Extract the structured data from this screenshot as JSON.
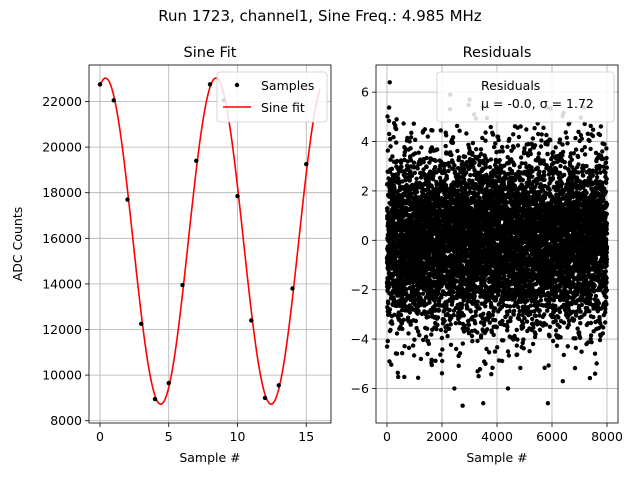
{
  "figure": {
    "suptitle": "Run 1723, channel1, Sine Freq.: 4.985 MHz"
  },
  "chart_data": [
    {
      "type": "scatter",
      "title": "Sine Fit",
      "xlabel": "Sample #",
      "ylabel": "ADC Counts",
      "xlim": [
        -0.8,
        16.8
      ],
      "ylim": [
        7900,
        23600
      ],
      "xticks": [
        0,
        5,
        10,
        15
      ],
      "yticks": [
        8000,
        10000,
        12000,
        14000,
        16000,
        18000,
        20000,
        22000
      ],
      "grid": true,
      "legend": {
        "position": "top-right",
        "entries": [
          "Samples",
          "Sine fit"
        ]
      },
      "series": [
        {
          "name": "Samples",
          "kind": "scatter",
          "color": "#000000",
          "x": [
            0,
            1,
            2,
            3,
            4,
            5,
            6,
            7,
            8,
            9,
            10,
            11,
            12,
            13,
            14,
            15
          ],
          "y": [
            22750,
            22050,
            17700,
            12250,
            8950,
            9650,
            13950,
            19400,
            22750,
            22050,
            17850,
            12400,
            9000,
            9550,
            13800,
            19250
          ]
        },
        {
          "name": "Sine fit",
          "kind": "line",
          "color": "#ff0000",
          "function": "sine",
          "mean": 15875,
          "amplitude": 7150,
          "period_samples": 8.03,
          "peak_at_sample": 0.4,
          "x_range": [
            0,
            16
          ]
        }
      ]
    },
    {
      "type": "scatter",
      "title": "Residuals",
      "xlabel": "Sample #",
      "ylabel": "",
      "xlim": [
        -400,
        8400
      ],
      "ylim": [
        -7.4,
        7.1
      ],
      "xticks": [
        0,
        2000,
        4000,
        6000,
        8000
      ],
      "yticks": [
        -6,
        -4,
        -2,
        0,
        2,
        4,
        6
      ],
      "grid": true,
      "legend": {
        "position": "top-right",
        "entries": [
          "Residuals",
          "μ = -0.0, σ = 1.72"
        ]
      },
      "series": [
        {
          "name": "Residuals",
          "kind": "scatter",
          "color": "#000000",
          "n_points": 8000,
          "x_range": [
            0,
            8000
          ],
          "mean": 0.0,
          "std": 1.72,
          "outliers": [
            [
              100,
              6.4
            ],
            [
              2300,
              5.9
            ],
            [
              3000,
              5.7
            ],
            [
              2750,
              -6.7
            ],
            [
              3500,
              -6.6
            ],
            [
              5850,
              -6.6
            ],
            [
              2450,
              -6.0
            ],
            [
              4400,
              -6.0
            ]
          ]
        }
      ]
    }
  ]
}
